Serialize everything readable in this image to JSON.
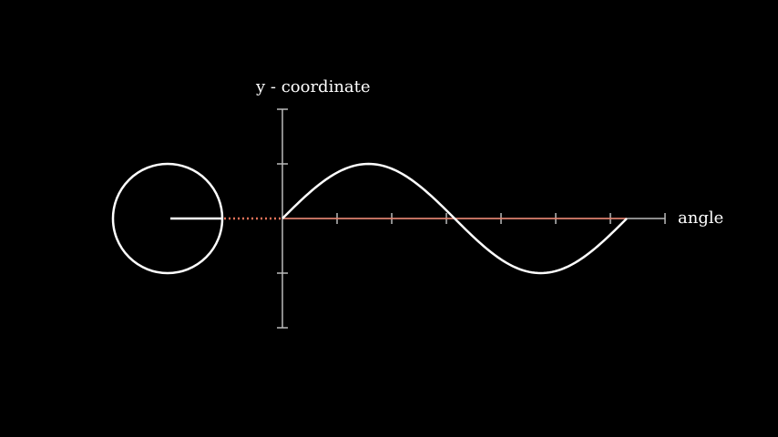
{
  "labels": {
    "y_axis": "y - coordinate",
    "x_axis": "angle"
  },
  "colors": {
    "background": "#000000",
    "foreground": "#ffffff",
    "axis": "#bbbbbb",
    "accent": "#e8735a"
  },
  "curve": {
    "function": "sine",
    "periods": 1,
    "amplitude": 1
  },
  "unit_circle": {
    "radius_value": 1,
    "radius_line_angle_deg": 0
  },
  "x_axis_ticks": 7,
  "y_axis_ticks": [
    -2,
    -1,
    1,
    2
  ]
}
